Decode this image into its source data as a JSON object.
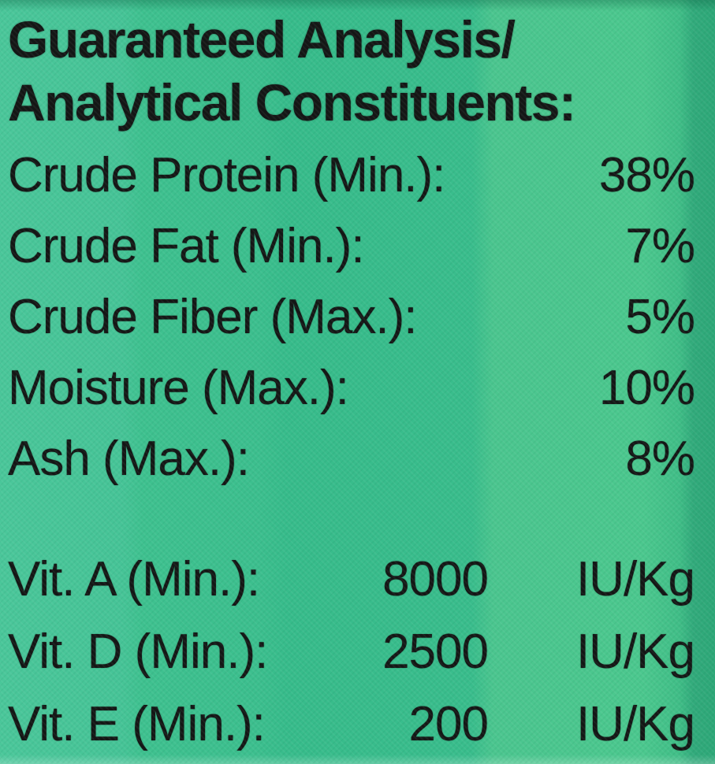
{
  "title": {
    "line1": "Guaranteed Analysis/",
    "line2": "Analytical Constituents:"
  },
  "analysis": [
    {
      "name": "Crude Protein (Min.):",
      "value": "38%"
    },
    {
      "name": "Crude Fat (Min.):",
      "value": "7%"
    },
    {
      "name": "Crude Fiber (Max.):",
      "value": "5%"
    },
    {
      "name": "Moisture (Max.):",
      "value": "10%"
    },
    {
      "name": "Ash (Max.):",
      "value": "8%"
    }
  ],
  "vitamins": [
    {
      "name": "Vit. A (Min.):",
      "value": "8000",
      "unit": "IU/Kg"
    },
    {
      "name": "Vit. D (Min.):",
      "value": "2500",
      "unit": "IU/Kg"
    },
    {
      "name": "Vit. E (Min.):",
      "value": "200",
      "unit": "IU/Kg"
    }
  ],
  "colors": {
    "bg_main": "#3cbf8e",
    "bg_left_band": "#4ac79a",
    "bg_right_band": "#4bc88e",
    "bg_right_edge": "#2da878",
    "text_color": "#141615"
  }
}
